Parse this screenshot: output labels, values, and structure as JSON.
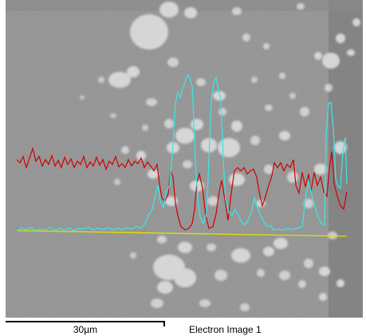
{
  "scale_bar": {
    "label": "30µm"
  },
  "image_title": "Electron Image 1",
  "colors": {
    "background": "#8c8c8c",
    "particle": "#d4d4d4",
    "trace_red": "#cc0000",
    "trace_cyan": "#40e0e0",
    "trace_yellow": "#dddd00"
  }
}
